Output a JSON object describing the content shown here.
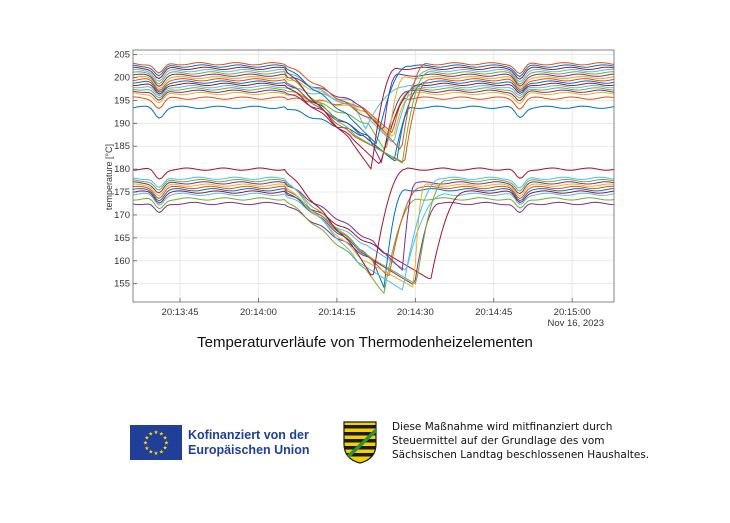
{
  "chart_data": {
    "type": "line",
    "title": "",
    "xlabel": "",
    "ylabel": "temperature [°C]",
    "x_ticks": [
      "20:13:45",
      "20:14:00",
      "20:14:15",
      "20:14:30",
      "20:14:45",
      "20:15:00"
    ],
    "x_date_label": "Nov 16, 2023",
    "y_ticks": [
      155,
      160,
      165,
      170,
      175,
      180,
      185,
      190,
      195,
      200,
      205
    ],
    "xlim": [
      "20:13:36",
      "20:15:08"
    ],
    "ylim": [
      151,
      206
    ],
    "grid": true,
    "series_colors": [
      "#0072BD",
      "#D95319",
      "#EDB120",
      "#7E2F8E",
      "#77AC30",
      "#4DBEEE",
      "#A2142F"
    ],
    "upper_group_levels": [
      193.5,
      195.5,
      196.5,
      197,
      197.5,
      198,
      198.5,
      199,
      199.5,
      200,
      200.5,
      201,
      201.5,
      202,
      202.5,
      203
    ],
    "lower_group_levels": [
      172.5,
      173.5,
      174.5,
      175,
      175.5,
      176,
      176.5,
      177,
      177.5,
      178,
      180
    ],
    "upper_group_min": 179,
    "lower_group_min": 152
  },
  "caption": "Temperaturverläufe von Thermodenheizelementen",
  "eu_logo": {
    "line1": "Kofinanziert von der",
    "line2": "Europäischen Union",
    "flag_color": "#1f3f98",
    "star_color": "#ffdd00"
  },
  "saxony_notice": {
    "line1": "Diese Maßnahme wird mitfinanziert durch",
    "line2": "Steuermittel auf der Grundlage des vom",
    "line3": "Sächsischen Landtag beschlossenen Haushaltes."
  }
}
